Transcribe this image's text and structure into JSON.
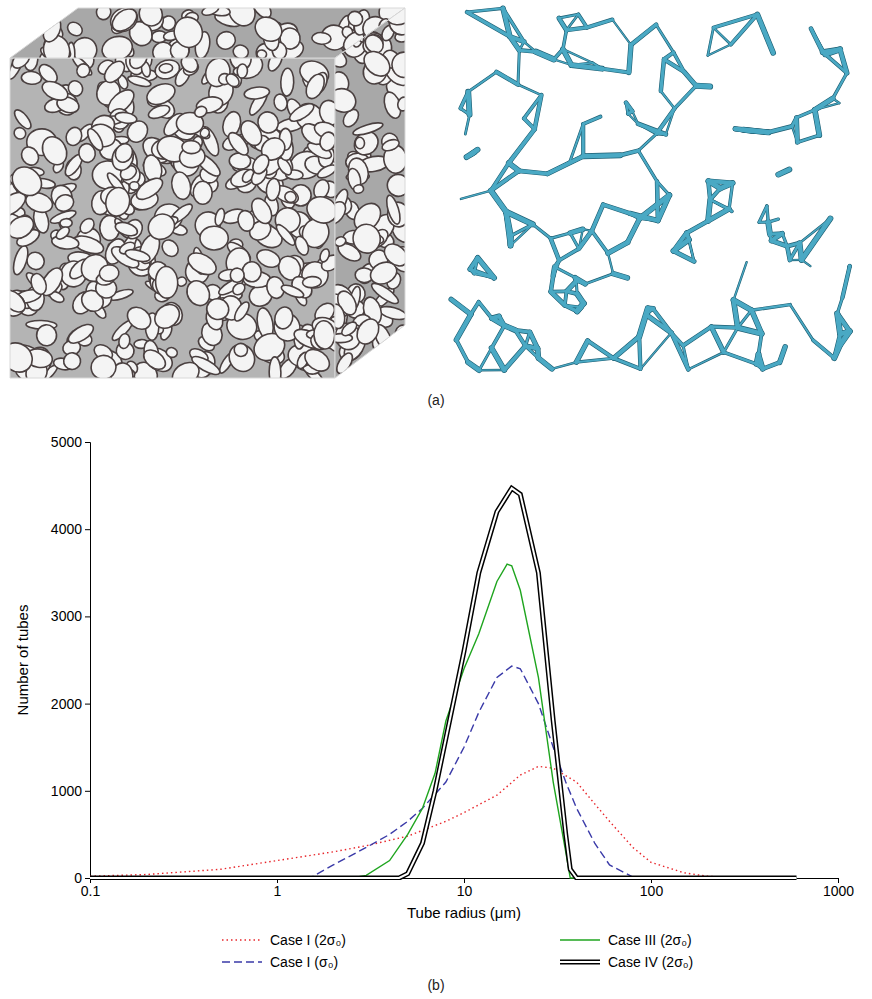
{
  "panel_labels": [
    "(a)",
    "(b)"
  ],
  "chart_data": {
    "type": "line",
    "x_label": "Tube radius (μm)",
    "y_label": "Number of tubes",
    "log": "x",
    "grid": false,
    "legend": "bottom",
    "xlim": [
      0.1,
      1000
    ],
    "xticks": [
      0.1,
      1,
      10,
      100,
      1000
    ],
    "ylim": [
      0,
      5000
    ],
    "yticks": [
      0,
      1000,
      2000,
      3000,
      4000,
      5000
    ],
    "series": [
      {
        "name": "Case I (2σ₀)",
        "color": "#e8262b",
        "line_style": "dotted",
        "x": [
          0.1,
          0.2,
          0.5,
          1,
          2,
          3,
          5,
          8,
          10,
          15,
          20,
          25,
          30,
          40,
          50,
          60,
          80,
          100,
          150,
          200,
          300,
          600
        ],
        "values": [
          20,
          40,
          100,
          200,
          300,
          370,
          480,
          650,
          750,
          950,
          1180,
          1280,
          1260,
          1100,
          850,
          650,
          350,
          180,
          60,
          20,
          5,
          0
        ]
      },
      {
        "name": "Case I (σ₀)",
        "color": "#3a3aa8",
        "line_style": "dashed",
        "x": [
          0.1,
          1,
          1.5,
          2,
          3,
          4,
          5,
          6,
          8,
          10,
          12,
          15,
          18,
          20,
          25,
          30,
          35,
          40,
          50,
          60,
          80,
          100,
          600
        ],
        "values": [
          0,
          0,
          0,
          150,
          350,
          500,
          650,
          800,
          1100,
          1500,
          1900,
          2300,
          2430,
          2400,
          2000,
          1500,
          1100,
          800,
          400,
          150,
          10,
          0,
          0
        ]
      },
      {
        "name": "Case III (2σ₀)",
        "color": "#1fa51f",
        "line_style": "solid",
        "x": [
          0.1,
          2.5,
          3,
          4,
          5,
          6,
          7,
          8,
          10,
          12,
          15,
          17,
          18,
          20,
          25,
          30,
          35,
          37,
          40,
          600
        ],
        "values": [
          0,
          0,
          30,
          200,
          500,
          800,
          1200,
          1800,
          2400,
          2800,
          3400,
          3600,
          3580,
          3300,
          2300,
          1100,
          300,
          0,
          0,
          0
        ]
      },
      {
        "name": "Case IV (2σ₀)",
        "color": "#000000",
        "line_style": "double",
        "x": [
          0.1,
          4.5,
          5,
          6,
          7,
          8,
          10,
          12,
          15,
          18,
          20,
          25,
          30,
          35,
          37,
          40,
          600
        ],
        "values": [
          0,
          0,
          50,
          400,
          1000,
          1600,
          2600,
          3500,
          4200,
          4470,
          4400,
          3500,
          1800,
          500,
          100,
          0,
          0
        ]
      }
    ]
  }
}
